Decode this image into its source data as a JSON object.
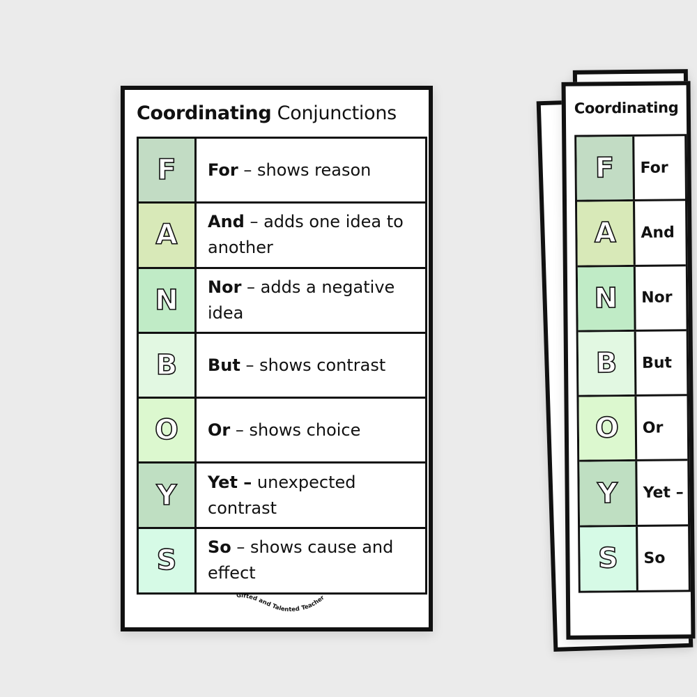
{
  "card": {
    "title_bold": "Coordinating",
    "title_rest": "Conjunctions",
    "rows": [
      {
        "letter": "F",
        "word": "For",
        "text": " – shows reason",
        "color": "#c2dcc4"
      },
      {
        "letter": "A",
        "word": "And",
        "text": " – adds one idea to another",
        "color": "#d8e9b8"
      },
      {
        "letter": "N",
        "word": "Nor",
        "text": " – adds a negative idea",
        "color": "#c0ebc6"
      },
      {
        "letter": "B",
        "word": "But",
        "text": " – shows contrast",
        "color": "#e2f8e2"
      },
      {
        "letter": "O",
        "word": "Or",
        "text": " – shows choice",
        "color": "#dcf8cf"
      },
      {
        "letter": "Y",
        "word": "Yet –",
        "text": " unexpected contrast",
        "color": "#bfdfc2"
      },
      {
        "letter": "S",
        "word": "So",
        "text": " – shows cause and effect",
        "color": "#d6fae6"
      }
    ],
    "logo_text": "Gifted and Talented Teacher"
  },
  "colors": {
    "background": "#ebebeb",
    "border": "#111111"
  }
}
